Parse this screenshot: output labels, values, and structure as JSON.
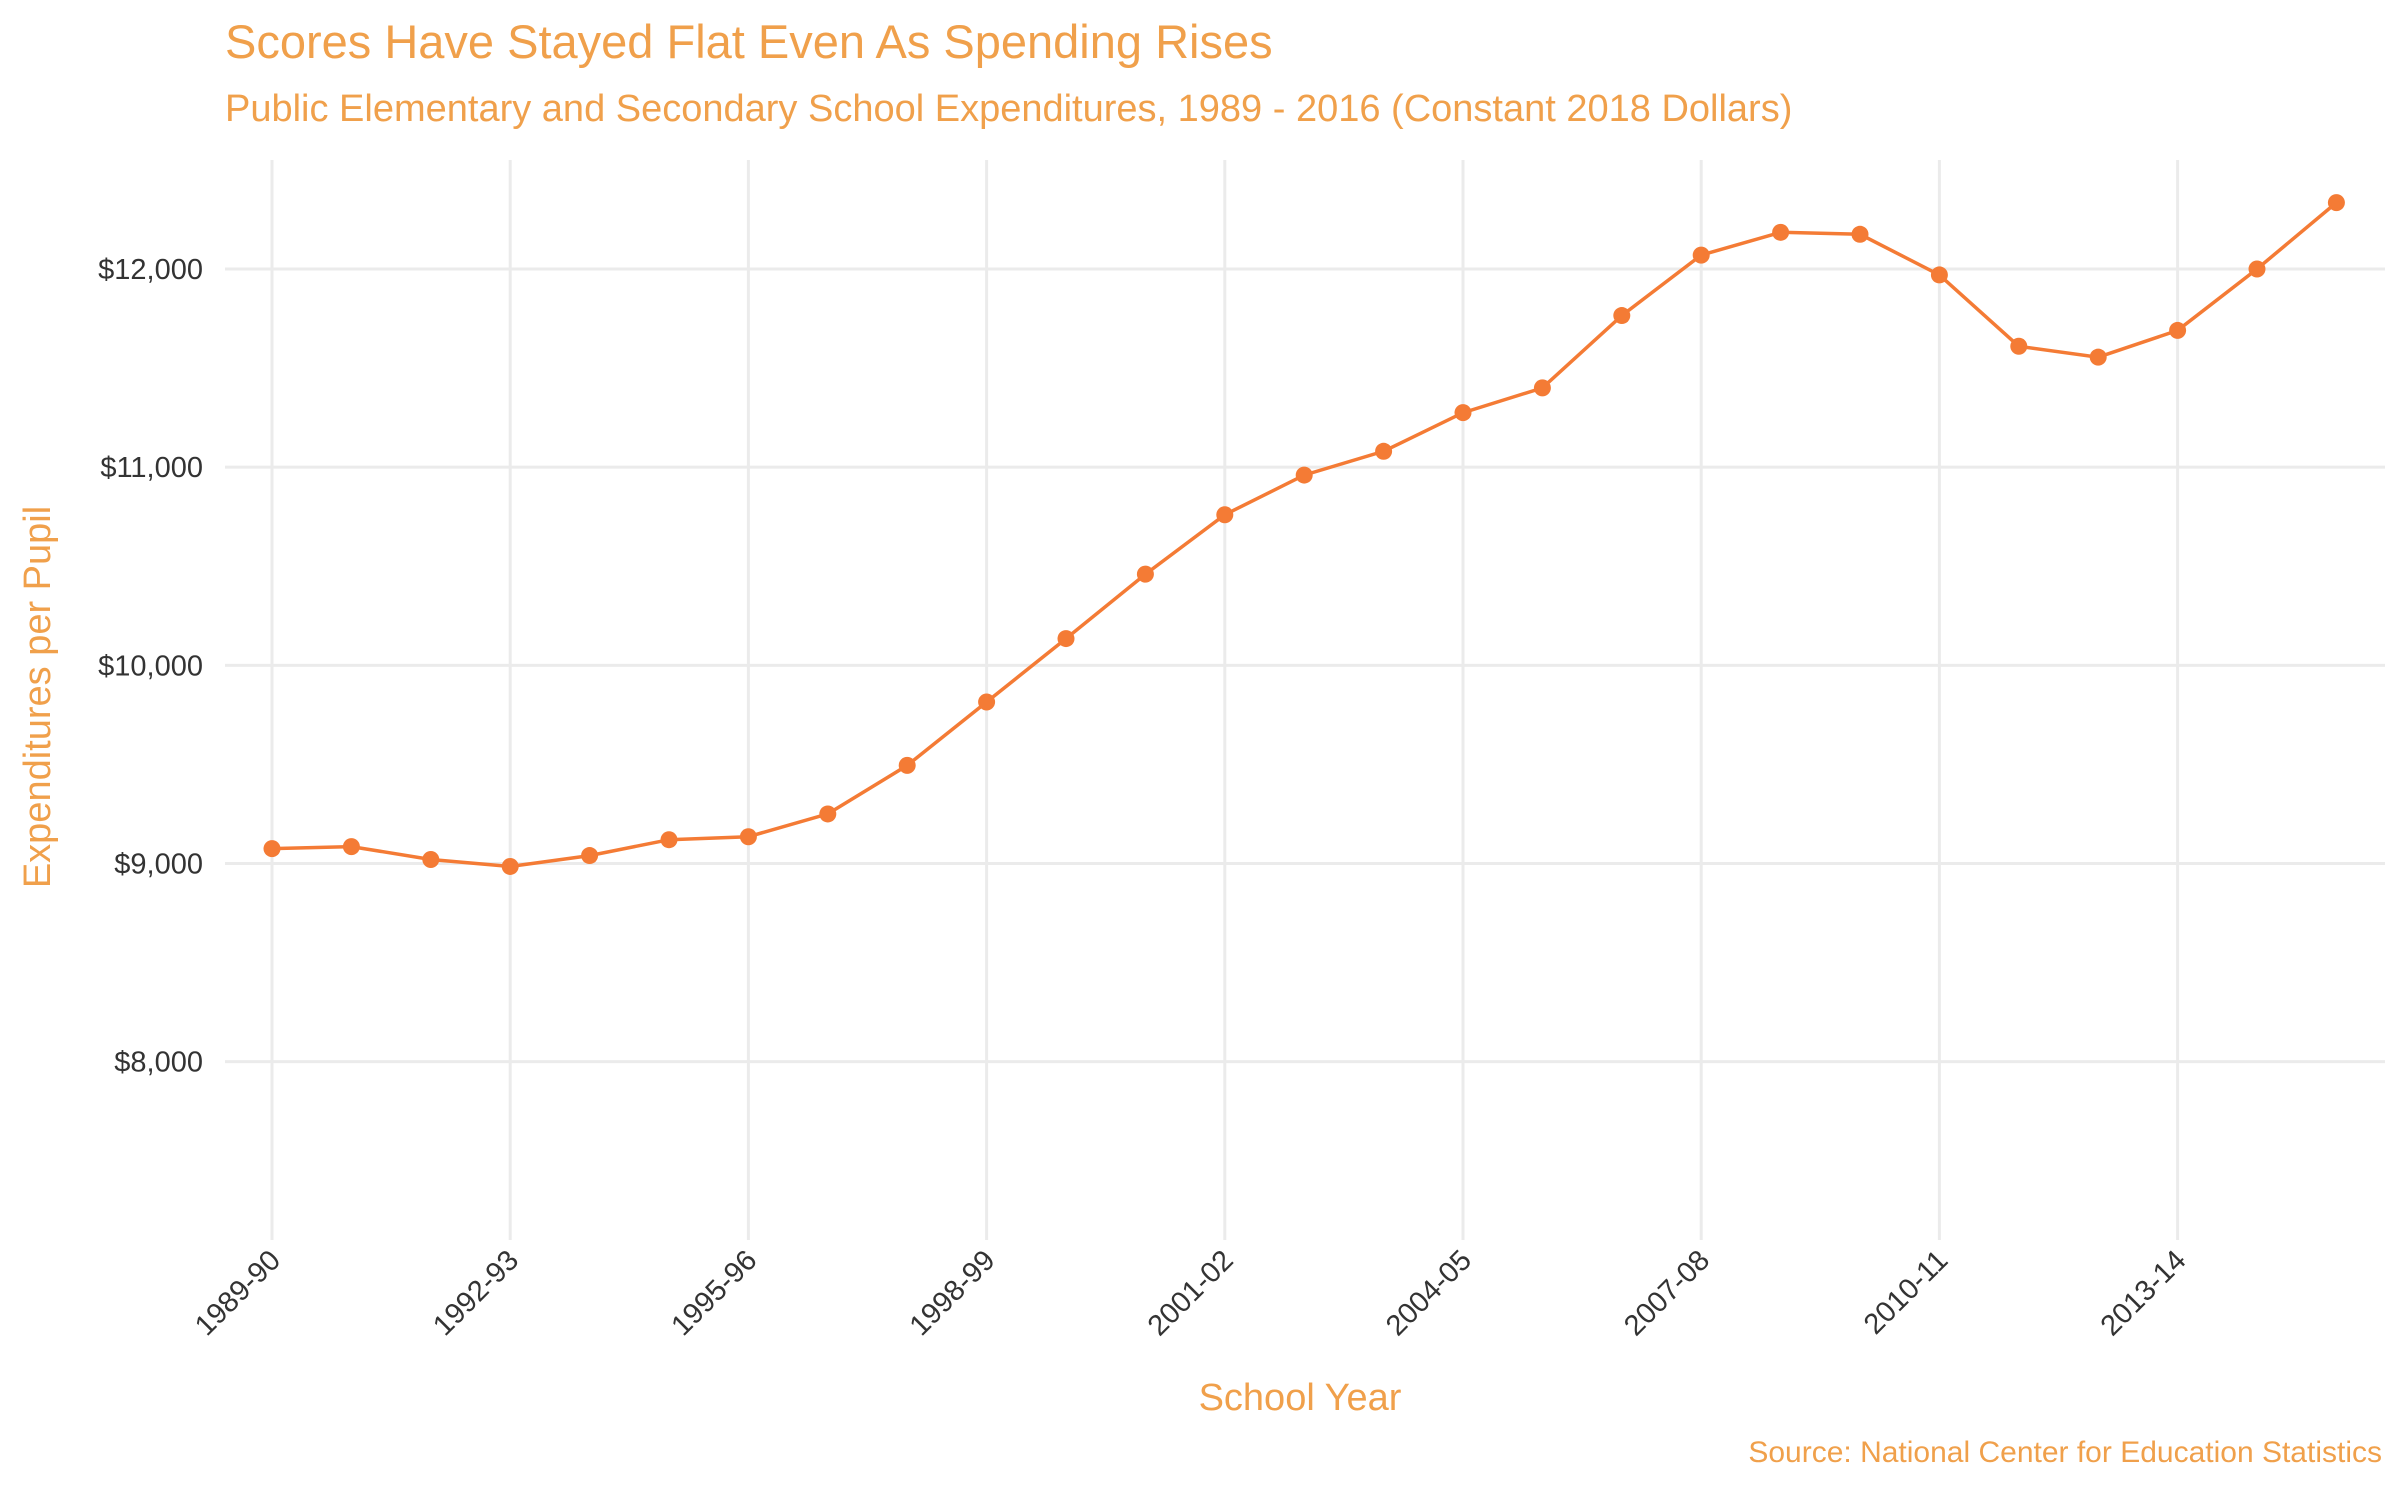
{
  "chart_data": {
    "type": "line",
    "title": "Scores Have Stayed Flat Even As Spending Rises",
    "subtitle": "Public Elementary and Secondary School Expenditures, 1989 - 2016 (Constant 2018 Dollars)",
    "caption": "Source: National Center for Education Statistics",
    "xlabel": "School Year",
    "ylabel": "Expenditures per Pupil",
    "ylim": [
      7100,
      12550
    ],
    "y_ticks": [
      8000,
      9000,
      10000,
      11000,
      12000
    ],
    "y_tick_labels": [
      "$8,000",
      "$9,000",
      "$10,000",
      "$11,000",
      "$12,000"
    ],
    "x_tick_labels": [
      "1989-90",
      "1992-93",
      "1995-96",
      "1998-99",
      "2001-02",
      "2004-05",
      "2007-08",
      "2010-11",
      "2013-14"
    ],
    "x_tick_every": 3,
    "grid": true,
    "line_color": "#F47B35",
    "series": [
      {
        "values": [
          9075,
          9085,
          9020,
          8985,
          9040,
          9120,
          9135,
          9250,
          9495,
          9815,
          10135,
          10460,
          10760,
          10960,
          11080,
          11275,
          11400,
          11765,
          12070,
          12185,
          12175,
          11970,
          11610,
          11555,
          11690,
          12000,
          12335
        ]
      }
    ]
  }
}
